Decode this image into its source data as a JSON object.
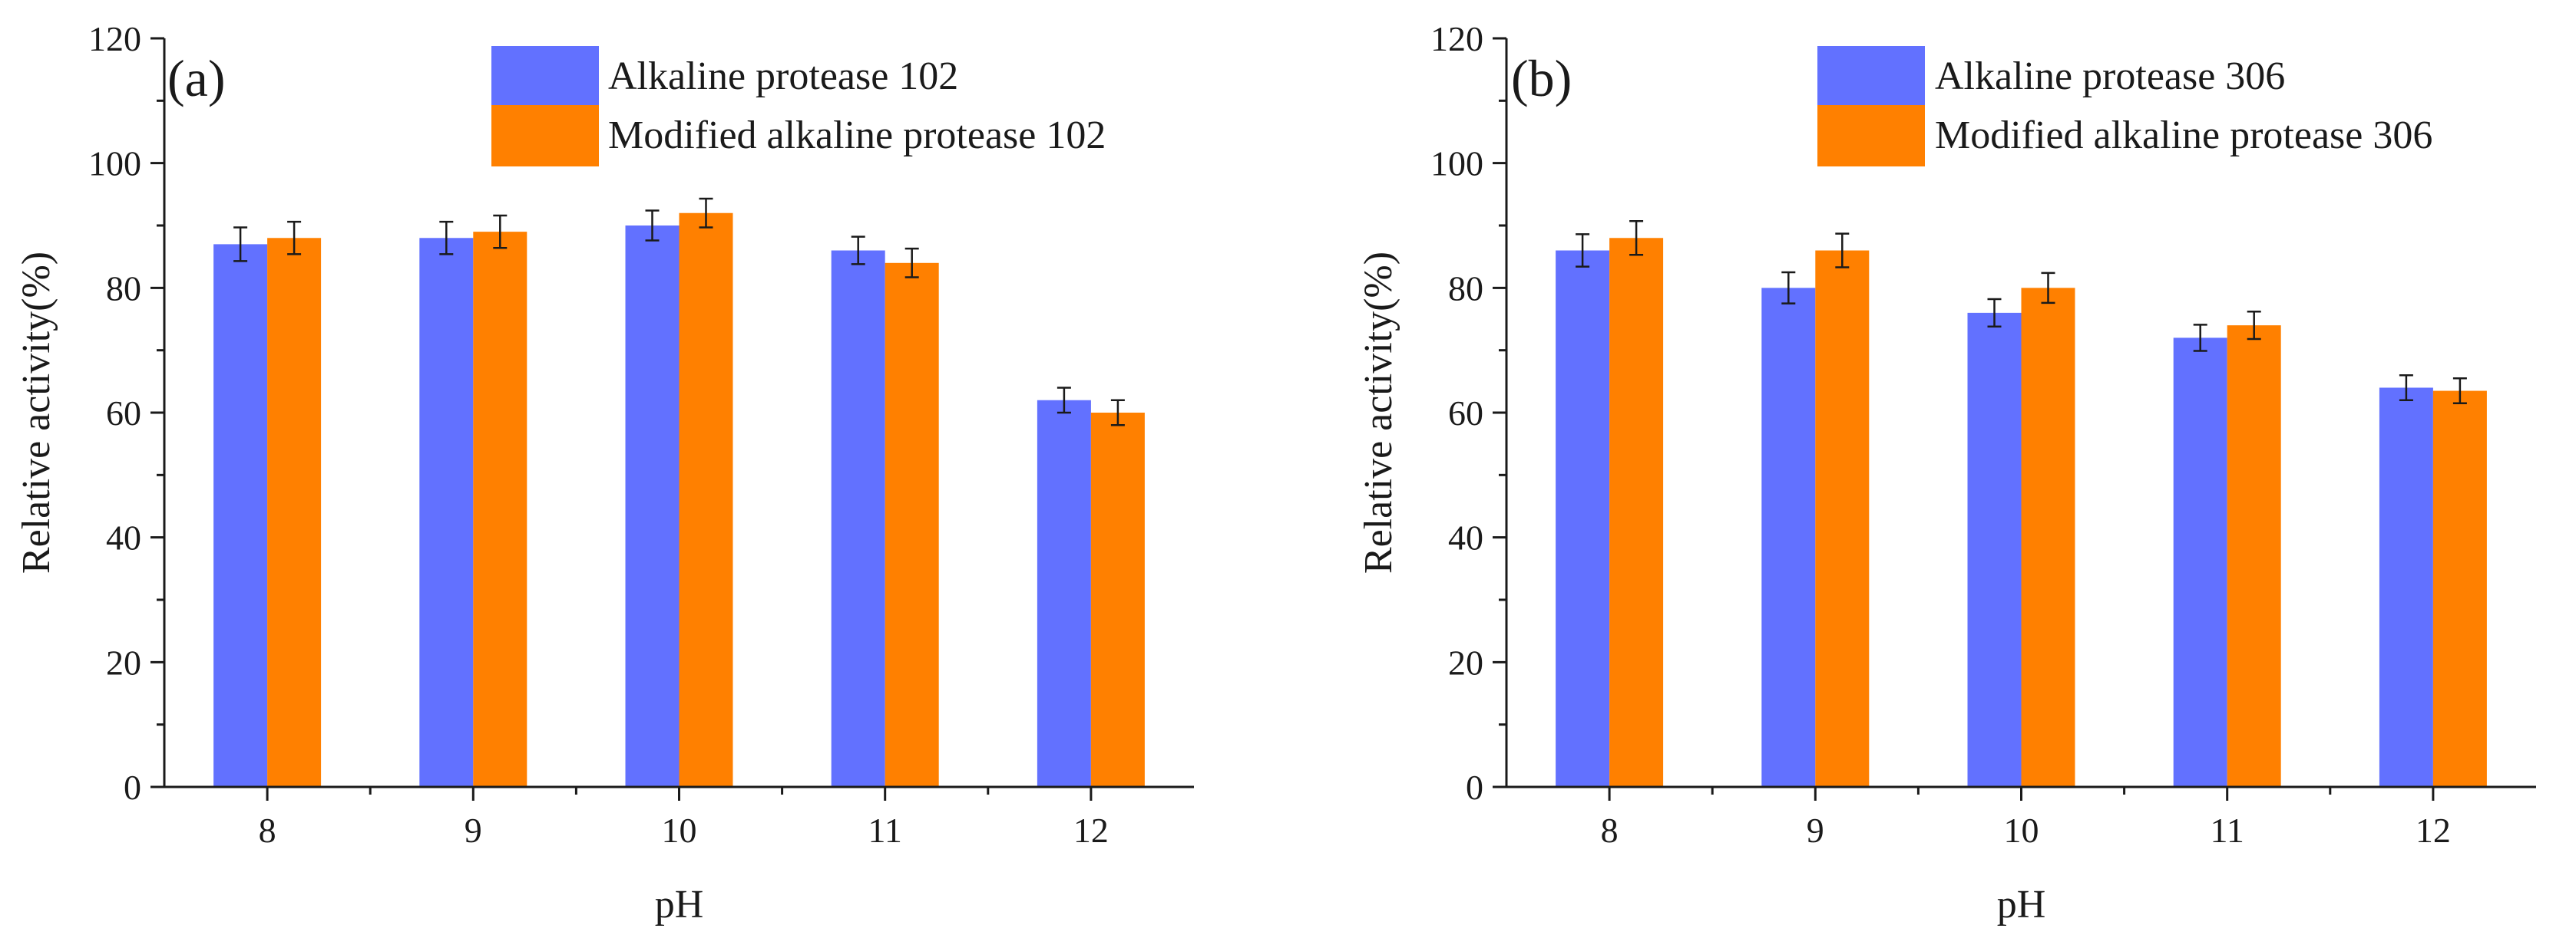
{
  "colors": {
    "series1": "#6271FF",
    "series2": "#FF8000",
    "axis": "#1a1a1a"
  },
  "chart_data": [
    {
      "type": "bar",
      "panel_label": "(a)",
      "xlabel": "pH",
      "ylabel": "Relative activity(%)",
      "categories": [
        "8",
        "9",
        "10",
        "11",
        "12"
      ],
      "ylim": [
        0,
        120
      ],
      "yticks": [
        "0",
        "20",
        "40",
        "60",
        "80",
        "100",
        "120"
      ],
      "legend_position": "top-right",
      "series": [
        {
          "name": "Alkaline protease 102",
          "values": [
            87,
            88,
            90,
            86,
            62
          ],
          "errors": [
            2.7,
            2.6,
            2.4,
            2.2,
            2.0
          ]
        },
        {
          "name": "Modified alkaline protease 102",
          "values": [
            88,
            89,
            92,
            84,
            60
          ],
          "errors": [
            2.6,
            2.6,
            2.3,
            2.3,
            2.0
          ]
        }
      ]
    },
    {
      "type": "bar",
      "panel_label": "(b)",
      "xlabel": "pH",
      "ylabel": "Relative activity(%)",
      "categories": [
        "8",
        "9",
        "10",
        "11",
        "12"
      ],
      "ylim": [
        0,
        120
      ],
      "yticks": [
        "0",
        "20",
        "40",
        "60",
        "80",
        "100",
        "120"
      ],
      "legend_position": "top-right",
      "series": [
        {
          "name": "Alkaline protease 306",
          "values": [
            86,
            80,
            76,
            72,
            64
          ],
          "errors": [
            2.6,
            2.5,
            2.2,
            2.1,
            2.0
          ]
        },
        {
          "name": "Modified alkaline protease 306",
          "values": [
            88,
            86,
            80,
            74,
            63.5
          ],
          "errors": [
            2.7,
            2.7,
            2.4,
            2.2,
            2.0
          ]
        }
      ]
    }
  ]
}
